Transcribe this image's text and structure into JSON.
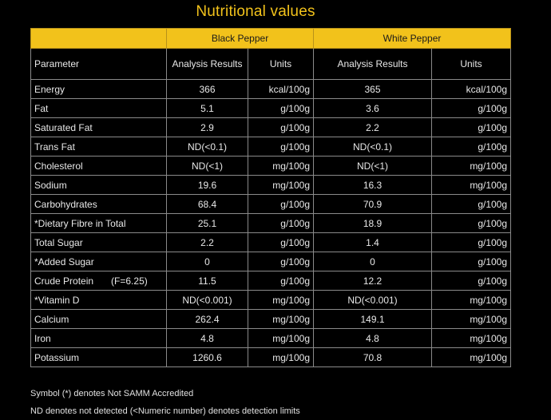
{
  "title": "Nutritional values",
  "groups": {
    "black": "Black Pepper",
    "white": "White Pepper"
  },
  "headers": {
    "parameter": "Parameter",
    "black_analysis": "Analysis Results",
    "black_units": "Units",
    "white_analysis": "Analysis Results",
    "white_units": "Units"
  },
  "rows": [
    {
      "param": "Energy",
      "black_value": "366",
      "black_unit": "kcal/100g",
      "white_value": "365",
      "white_unit": "kcal/100g"
    },
    {
      "param": "Fat",
      "black_value": "5.1",
      "black_unit": "g/100g",
      "white_value": "3.6",
      "white_unit": "g/100g"
    },
    {
      "param": "Saturated Fat",
      "black_value": "2.9",
      "black_unit": "g/100g",
      "white_value": "2.2",
      "white_unit": "g/100g"
    },
    {
      "param": "Trans Fat",
      "black_value": "ND(<0.1)",
      "black_unit": "g/100g",
      "white_value": "ND(<0.1)",
      "white_unit": "g/100g"
    },
    {
      "param": "Cholesterol",
      "black_value": "ND(<1)",
      "black_unit": "mg/100g",
      "white_value": "ND(<1)",
      "white_unit": "mg/100g"
    },
    {
      "param": "Sodium",
      "black_value": "19.6",
      "black_unit": "mg/100g",
      "white_value": "16.3",
      "white_unit": "mg/100g"
    },
    {
      "param": "Carbohydrates",
      "black_value": "68.4",
      "black_unit": "g/100g",
      "white_value": "70.9",
      "white_unit": "g/100g"
    },
    {
      "param": "*Dietary Fibre in Total",
      "black_value": "25.1",
      "black_unit": "g/100g",
      "white_value": "18.9",
      "white_unit": "g/100g"
    },
    {
      "param": "Total Sugar",
      "black_value": "2.2",
      "black_unit": "g/100g",
      "white_value": "1.4",
      "white_unit": "g/100g"
    },
    {
      "param": "*Added Sugar",
      "black_value": "0",
      "black_unit": "g/100g",
      "white_value": "0",
      "white_unit": "g/100g"
    },
    {
      "param": "Crude Protein",
      "param_extra": "(F=6.25)",
      "black_value": "11.5",
      "black_unit": "g/100g",
      "white_value": "12.2",
      "white_unit": "g/100g"
    },
    {
      "param": "*Vitamin D",
      "black_value": "ND(<0.001)",
      "black_unit": "mg/100g",
      "white_value": "ND(<0.001)",
      "white_unit": "mg/100g"
    },
    {
      "param": "Calcium",
      "black_value": "262.4",
      "black_unit": "mg/100g",
      "white_value": "149.1",
      "white_unit": "mg/100g"
    },
    {
      "param": "Iron",
      "black_value": "4.8",
      "black_unit": "mg/100g",
      "white_value": "4.8",
      "white_unit": "mg/100g"
    },
    {
      "param": "Potassium",
      "black_value": "1260.6",
      "black_unit": "mg/100g",
      "white_value": "70.8",
      "white_unit": "mg/100g"
    }
  ],
  "notes": [
    "Symbol (*) denotes Not SAMM Accredited",
    "ND denotes not detected (<Numeric number) denotes detection limits"
  ],
  "colors": {
    "background": "#000000",
    "accent": "#f2c21b",
    "text": "#e8e8e8",
    "border": "#8a8a8a"
  }
}
